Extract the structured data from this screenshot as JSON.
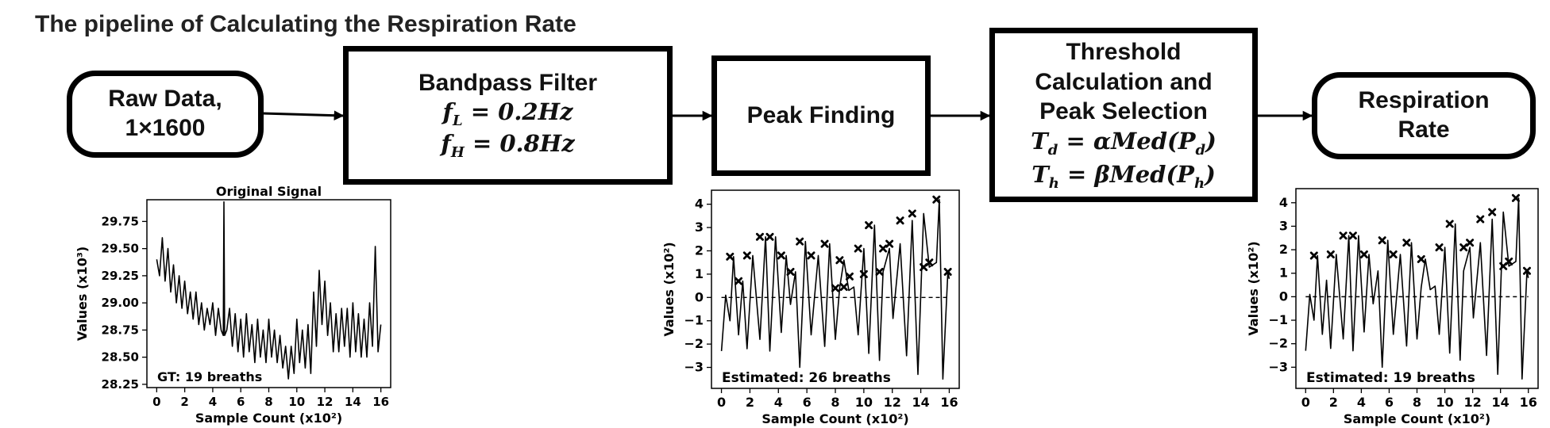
{
  "title": "The pipeline of Calculating the Respiration Rate",
  "nodes": {
    "raw": {
      "line1": "Raw Data,",
      "line2": "1×1600"
    },
    "bandpass": {
      "title": "Bandpass Filter",
      "eq1_sym": "f",
      "eq1_sub": "L",
      "eq1_rhs": " = 0.2Hz",
      "eq2_sym": "f",
      "eq2_sub": "H",
      "eq2_rhs": " = 0.8Hz"
    },
    "peak": {
      "title": "Peak Finding"
    },
    "threshold": {
      "line1": "Threshold",
      "line2": "Calculation and",
      "line3": "Peak Selection",
      "eq1_sym": "T",
      "eq1_sub": "d",
      "eq1_mid": " = αMed(P",
      "eq1_sub2": "d",
      "eq1_end": ")",
      "eq2_sym": "T",
      "eq2_sub": "h",
      "eq2_mid": " = βMed(P",
      "eq2_sub2": "h",
      "eq2_end": ")"
    },
    "rate": {
      "line1": "Respiration",
      "line2": "Rate"
    }
  },
  "chart_data": [
    {
      "type": "line",
      "title": "Original Signal",
      "xlabel": "Sample Count (x10²)",
      "ylabel": "Values (x10³)",
      "xlim": [
        -0.7,
        16.7
      ],
      "ylim": [
        28.22,
        29.95
      ],
      "xticks": [
        0,
        2,
        4,
        6,
        8,
        10,
        12,
        14,
        16
      ],
      "yticks": [
        28.25,
        28.5,
        28.75,
        29.0,
        29.25,
        29.5,
        29.75
      ],
      "ytick_labels": [
        "28.25",
        "28.50",
        "28.75",
        "29.00",
        "29.25",
        "29.50",
        "29.75"
      ],
      "annotation": "GT: 19 breaths",
      "zero_line": false,
      "series": [
        {
          "x": [
            0,
            0.2,
            0.4,
            0.6,
            0.8,
            1.0,
            1.2,
            1.4,
            1.6,
            1.8,
            2.0,
            2.2,
            2.4,
            2.6,
            2.8,
            3.0,
            3.2,
            3.4,
            3.6,
            3.8,
            4.0,
            4.2,
            4.4,
            4.6,
            4.75,
            4.8,
            4.85,
            5.0,
            5.2,
            5.4,
            5.6,
            5.8,
            6.0,
            6.2,
            6.4,
            6.6,
            6.8,
            7.0,
            7.2,
            7.4,
            7.6,
            7.8,
            8.0,
            8.2,
            8.4,
            8.6,
            8.8,
            9.0,
            9.2,
            9.4,
            9.6,
            9.8,
            10.0,
            10.2,
            10.4,
            10.6,
            10.8,
            11.0,
            11.2,
            11.4,
            11.6,
            11.8,
            12.0,
            12.2,
            12.4,
            12.6,
            12.8,
            13.0,
            13.2,
            13.4,
            13.6,
            13.8,
            14.0,
            14.2,
            14.4,
            14.6,
            14.8,
            15.0,
            15.2,
            15.4,
            15.6,
            15.8,
            16.0
          ],
          "y": [
            29.4,
            29.25,
            29.6,
            29.2,
            29.5,
            29.1,
            29.35,
            29.0,
            29.25,
            28.95,
            29.2,
            28.9,
            29.1,
            28.85,
            29.1,
            28.8,
            29.0,
            28.75,
            28.95,
            28.8,
            29.0,
            28.7,
            28.95,
            28.75,
            28.7,
            29.93,
            28.7,
            28.75,
            28.95,
            28.6,
            28.9,
            28.55,
            28.85,
            28.5,
            28.9,
            28.55,
            28.8,
            28.45,
            28.85,
            28.5,
            28.75,
            28.45,
            28.85,
            28.5,
            28.75,
            28.45,
            28.7,
            28.4,
            28.6,
            28.3,
            28.6,
            28.35,
            28.85,
            28.45,
            28.75,
            28.4,
            28.8,
            28.35,
            29.1,
            28.6,
            29.3,
            28.8,
            29.2,
            28.7,
            29.0,
            28.55,
            28.9,
            28.55,
            28.95,
            28.6,
            28.95,
            28.5,
            29.0,
            28.55,
            28.9,
            28.5,
            28.85,
            28.5,
            29.0,
            28.6,
            29.52,
            28.55,
            28.8
          ]
        }
      ]
    },
    {
      "type": "line",
      "xlabel": "Sample Count (x10²)",
      "ylabel": "Values (x10²)",
      "xlim": [
        -0.7,
        16.7
      ],
      "ylim": [
        -3.9,
        4.6
      ],
      "xticks": [
        0,
        2,
        4,
        6,
        8,
        10,
        12,
        14,
        16
      ],
      "yticks": [
        -3,
        -2,
        -1,
        0,
        1,
        2,
        3,
        4
      ],
      "annotation": "Estimated: 26 breaths",
      "zero_line": true,
      "series": [
        {
          "x": [
            0,
            0.3,
            0.6,
            0.85,
            1.2,
            1.5,
            1.8,
            2.2,
            2.7,
            3.1,
            3.4,
            3.8,
            4.2,
            4.55,
            4.85,
            5.2,
            5.5,
            5.9,
            6.3,
            6.8,
            7.25,
            7.6,
            8.0,
            8.3,
            8.6,
            8.95,
            9.3,
            9.6,
            10.0,
            10.35,
            10.75,
            11.1,
            11.35,
            11.8,
            12.05,
            12.55,
            13.0,
            13.4,
            13.8,
            14.2,
            14.6,
            15.1,
            15.3,
            15.55,
            15.9,
            16.0
          ],
          "y": [
            -2.3,
            0.1,
            -1.0,
            1.75,
            -1.6,
            0.7,
            -2.2,
            1.8,
            -1.8,
            2.6,
            -2.3,
            2.6,
            -1.5,
            1.8,
            -0.3,
            1.1,
            -3.0,
            2.4,
            -1.6,
            1.8,
            -2.1,
            2.3,
            -1.8,
            0.4,
            1.6,
            0.3,
            0.45,
            -1.6,
            2.1,
            -2.4,
            3.1,
            -2.7,
            1.1,
            2.1,
            -0.9,
            2.3,
            -2.5,
            3.3,
            -3.3,
            3.6,
            1.3,
            1.5,
            4.2,
            -3.5,
            1.1,
            0.8
          ]
        }
      ],
      "markers": [
        {
          "x": 0.6,
          "y": 1.75
        },
        {
          "x": 1.2,
          "y": 0.7
        },
        {
          "x": 1.8,
          "y": 1.8
        },
        {
          "x": 2.7,
          "y": 2.6
        },
        {
          "x": 3.4,
          "y": 2.6
        },
        {
          "x": 4.2,
          "y": 1.8
        },
        {
          "x": 4.85,
          "y": 1.1
        },
        {
          "x": 5.5,
          "y": 2.4
        },
        {
          "x": 6.3,
          "y": 1.8
        },
        {
          "x": 7.25,
          "y": 2.3
        },
        {
          "x": 8.0,
          "y": 0.4
        },
        {
          "x": 8.3,
          "y": 1.6
        },
        {
          "x": 8.6,
          "y": 0.45
        },
        {
          "x": 9.6,
          "y": 2.1
        },
        {
          "x": 10.35,
          "y": 3.1
        },
        {
          "x": 11.1,
          "y": 1.1
        },
        {
          "x": 11.35,
          "y": 2.1
        },
        {
          "x": 11.8,
          "y": 2.3
        },
        {
          "x": 12.55,
          "y": 3.3
        },
        {
          "x": 13.4,
          "y": 3.6
        },
        {
          "x": 14.2,
          "y": 1.3
        },
        {
          "x": 14.6,
          "y": 1.5
        },
        {
          "x": 15.1,
          "y": 4.2
        },
        {
          "x": 15.9,
          "y": 1.1
        },
        {
          "x": 9.0,
          "y": 0.9
        },
        {
          "x": 10.0,
          "y": 1.0
        }
      ]
    },
    {
      "type": "line",
      "xlabel": "Sample Count (x10²)",
      "ylabel": "Values (x10²)",
      "xlim": [
        -0.7,
        16.7
      ],
      "ylim": [
        -3.9,
        4.6
      ],
      "xticks": [
        0,
        2,
        4,
        6,
        8,
        10,
        12,
        14,
        16
      ],
      "yticks": [
        -3,
        -2,
        -1,
        0,
        1,
        2,
        3,
        4
      ],
      "annotation": "Estimated: 19 breaths",
      "zero_line": true,
      "series": [
        {
          "x": [
            0,
            0.3,
            0.6,
            0.85,
            1.2,
            1.5,
            1.8,
            2.2,
            2.7,
            3.1,
            3.4,
            3.8,
            4.2,
            4.55,
            4.85,
            5.2,
            5.5,
            5.9,
            6.3,
            6.8,
            7.25,
            7.6,
            8.0,
            8.3,
            8.6,
            8.95,
            9.3,
            9.6,
            10.0,
            10.35,
            10.75,
            11.1,
            11.35,
            11.8,
            12.05,
            12.55,
            13.0,
            13.4,
            13.8,
            14.2,
            14.6,
            15.1,
            15.3,
            15.55,
            15.9,
            16.0
          ],
          "y": [
            -2.3,
            0.1,
            -1.0,
            1.75,
            -1.6,
            0.7,
            -2.2,
            1.8,
            -1.8,
            2.6,
            -2.3,
            2.6,
            -1.5,
            1.8,
            -0.3,
            1.1,
            -3.0,
            2.4,
            -1.6,
            1.8,
            -2.1,
            2.3,
            -1.8,
            0.4,
            1.6,
            0.3,
            0.45,
            -1.6,
            2.1,
            -2.4,
            3.1,
            -2.7,
            1.1,
            2.1,
            -0.9,
            2.3,
            -2.5,
            3.3,
            -3.3,
            3.6,
            1.3,
            1.5,
            4.2,
            -3.5,
            1.1,
            0.8
          ]
        }
      ],
      "markers": [
        {
          "x": 0.6,
          "y": 1.75
        },
        {
          "x": 1.8,
          "y": 1.8
        },
        {
          "x": 2.7,
          "y": 2.6
        },
        {
          "x": 3.4,
          "y": 2.6
        },
        {
          "x": 4.2,
          "y": 1.8
        },
        {
          "x": 5.5,
          "y": 2.4
        },
        {
          "x": 6.3,
          "y": 1.8
        },
        {
          "x": 7.25,
          "y": 2.3
        },
        {
          "x": 8.3,
          "y": 1.6
        },
        {
          "x": 9.6,
          "y": 2.1
        },
        {
          "x": 10.35,
          "y": 3.1
        },
        {
          "x": 11.35,
          "y": 2.1
        },
        {
          "x": 11.8,
          "y": 2.3
        },
        {
          "x": 12.55,
          "y": 3.3
        },
        {
          "x": 13.4,
          "y": 3.6
        },
        {
          "x": 14.2,
          "y": 1.3
        },
        {
          "x": 14.6,
          "y": 1.5
        },
        {
          "x": 15.1,
          "y": 4.2
        },
        {
          "x": 15.9,
          "y": 1.1
        }
      ]
    }
  ]
}
